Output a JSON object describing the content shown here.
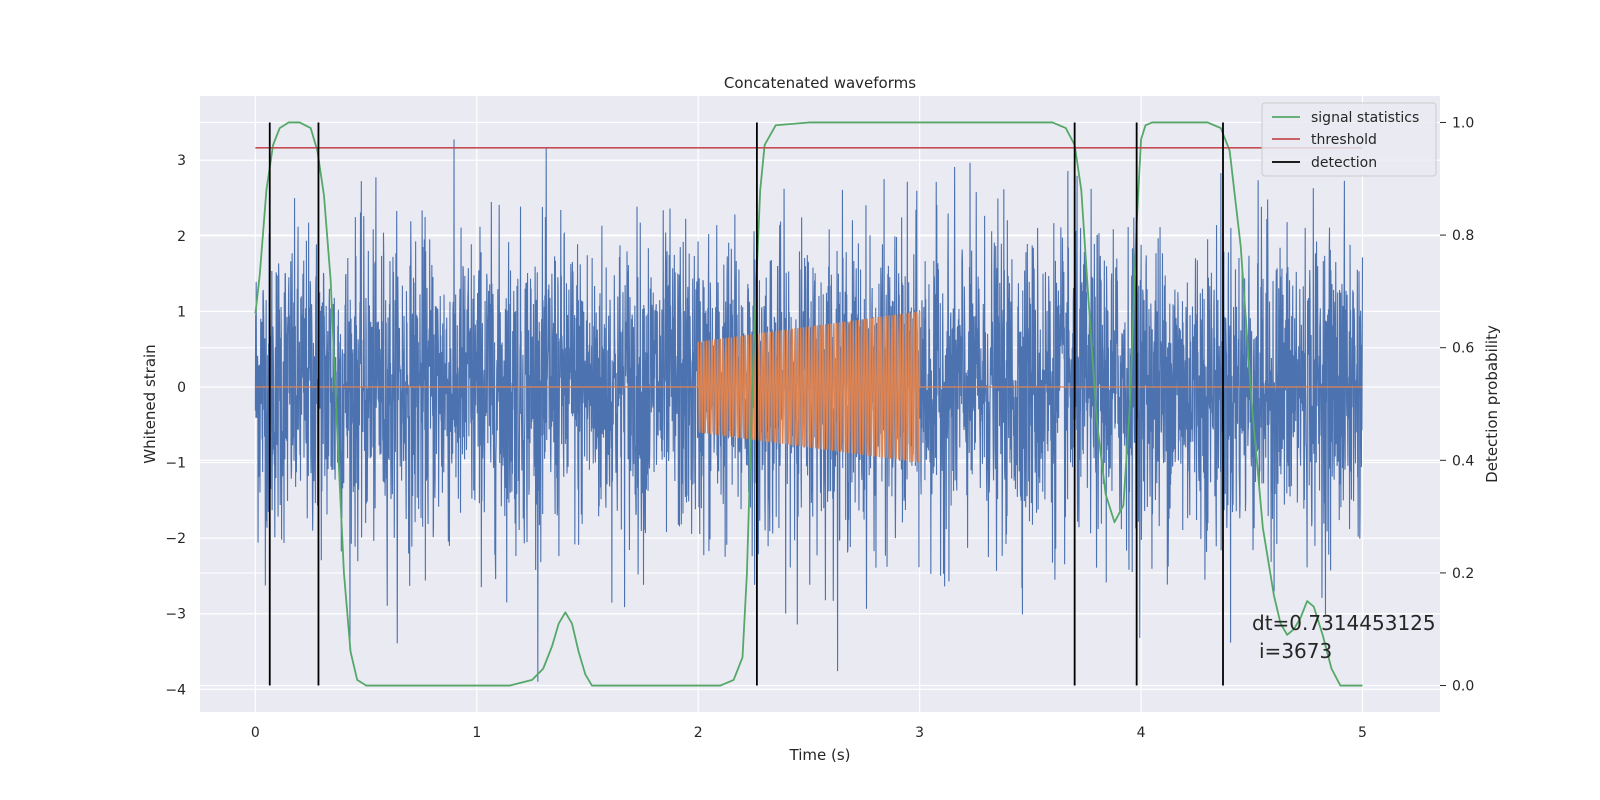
{
  "chart_data": {
    "type": "line",
    "title": "Concatenated waveforms",
    "xlabel": "Time (s)",
    "ylabel": "Whitened strain",
    "y2label": "Detection probability",
    "xlim": [
      -0.25,
      5.35
    ],
    "ylim": [
      -4.3,
      3.85
    ],
    "y2lim": [
      -0.047,
      1.047
    ],
    "xticks": [
      0,
      1,
      2,
      3,
      4,
      5
    ],
    "yticks": [
      -4,
      -3,
      -2,
      -1,
      0,
      1,
      2,
      3
    ],
    "y2ticks": [
      0.0,
      0.2,
      0.4,
      0.6,
      0.8,
      1.0
    ],
    "xtick_labels": [
      "0",
      "1",
      "2",
      "3",
      "4",
      "5"
    ],
    "ytick_labels": [
      "−4",
      "−3",
      "−2",
      "−1",
      "0",
      "1",
      "2",
      "3"
    ],
    "y2tick_labels": [
      "0.0",
      "0.2",
      "0.4",
      "0.6",
      "0.8",
      "1.0"
    ],
    "grid": true,
    "legend_position": "top-right",
    "colors": {
      "noise": "#4c72b0",
      "injected": "#dd8452",
      "signal_statistics": "#55a868",
      "threshold": "#c44e52",
      "detection": "#000000",
      "background": "#eaeaf2",
      "grid": "#ffffff"
    },
    "series": [
      {
        "name": "signal statistics",
        "axis": "right",
        "x": [
          0.0,
          0.02,
          0.05,
          0.08,
          0.11,
          0.15,
          0.2,
          0.25,
          0.28,
          0.31,
          0.34,
          0.37,
          0.4,
          0.43,
          0.46,
          0.5,
          0.6,
          0.8,
          1.0,
          1.15,
          1.25,
          1.3,
          1.34,
          1.37,
          1.4,
          1.43,
          1.46,
          1.49,
          1.52,
          1.55,
          1.6,
          1.8,
          2.0,
          2.1,
          2.16,
          2.2,
          2.22,
          2.25,
          2.28,
          2.3,
          2.35,
          2.5,
          3.0,
          3.6,
          3.66,
          3.7,
          3.73,
          3.76,
          3.8,
          3.84,
          3.88,
          3.92,
          3.95,
          3.98,
          4.0,
          4.02,
          4.05,
          4.1,
          4.3,
          4.36,
          4.4,
          4.45,
          4.5,
          4.55,
          4.6,
          4.63,
          4.66,
          4.69,
          4.72,
          4.75,
          4.78,
          4.82,
          4.86,
          4.9,
          5.0
        ],
        "y": [
          0.66,
          0.73,
          0.88,
          0.96,
          0.99,
          1.0,
          1.0,
          0.99,
          0.95,
          0.87,
          0.72,
          0.45,
          0.2,
          0.06,
          0.01,
          0.0,
          0.0,
          0.0,
          0.0,
          0.0,
          0.01,
          0.03,
          0.07,
          0.11,
          0.13,
          0.11,
          0.06,
          0.02,
          0.0,
          0.0,
          0.0,
          0.0,
          0.0,
          0.0,
          0.01,
          0.05,
          0.2,
          0.6,
          0.88,
          0.96,
          0.995,
          1.0,
          1.0,
          1.0,
          0.99,
          0.96,
          0.88,
          0.7,
          0.47,
          0.34,
          0.29,
          0.32,
          0.5,
          0.82,
          0.97,
          0.995,
          1.0,
          1.0,
          1.0,
          0.99,
          0.95,
          0.78,
          0.5,
          0.28,
          0.16,
          0.11,
          0.09,
          0.1,
          0.12,
          0.15,
          0.14,
          0.09,
          0.03,
          0.0,
          0.0
        ]
      },
      {
        "name": "threshold",
        "axis": "right",
        "x": [
          0.0,
          5.0
        ],
        "y": [
          0.955,
          0.955
        ]
      }
    ],
    "background_signals": [
      {
        "label": "whitened strain (noise)",
        "axis": "left",
        "x_range": [
          0.0,
          5.0
        ],
        "typical_amplitude": 1.0,
        "peak_range": [
          -3.9,
          3.45
        ]
      },
      {
        "label": "injected waveform",
        "axis": "left",
        "x_range": [
          2.0,
          3.0
        ],
        "amplitude_start": 0.6,
        "amplitude_end": 1.0,
        "cycles": 80,
        "baseline": 0.0
      }
    ],
    "detection": {
      "name": "detection",
      "x": [
        0.065,
        0.285,
        2.265,
        3.7,
        3.98,
        4.37
      ],
      "y_range": [
        0.0,
        1.0
      ]
    },
    "annotation": {
      "line1": "dt=0.7314453125",
      "line2": "i=3673",
      "x": 4.5,
      "y": 0.1
    }
  }
}
